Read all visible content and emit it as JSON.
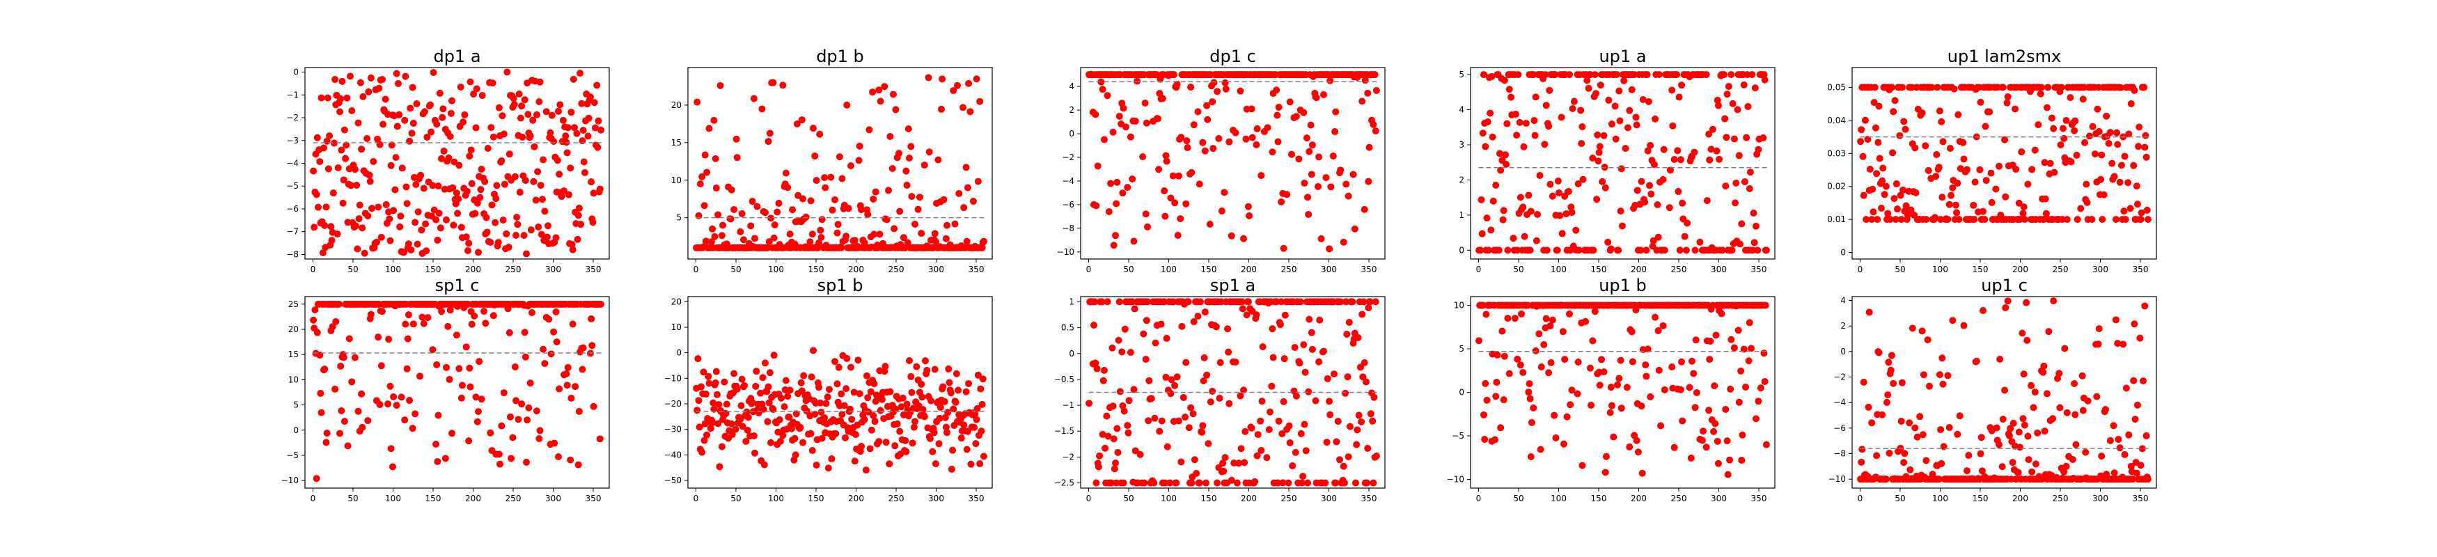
{
  "colors": {
    "marker": "#ff0000",
    "mean_line": "#808080",
    "axis": "#000000"
  },
  "chart_data": [
    {
      "type": "scatter",
      "title": "dp1 a",
      "xlim": [
        -10,
        370
      ],
      "ylim": [
        -8.2,
        0.2
      ],
      "xticks": [
        0,
        50,
        100,
        150,
        200,
        250,
        300,
        350
      ],
      "yticks": [
        -8,
        -7,
        -6,
        -5,
        -4,
        -3,
        -2,
        -1,
        0
      ],
      "mean": -3.1,
      "n": 360,
      "y_range": [
        -8,
        0
      ],
      "pattern": "uniform"
    },
    {
      "type": "scatter",
      "title": "dp1 b",
      "xlim": [
        -10,
        370
      ],
      "ylim": [
        -0.5,
        25
      ],
      "xticks": [
        0,
        50,
        100,
        150,
        200,
        250,
        300,
        350
      ],
      "yticks": [
        5,
        10,
        15,
        20
      ],
      "mean": 5.0,
      "n": 360,
      "y_range": [
        1,
        24
      ],
      "pattern": "floor-heavy"
    },
    {
      "type": "scatter",
      "title": "dp1 c",
      "xlim": [
        -10,
        370
      ],
      "ylim": [
        -10.6,
        5.6
      ],
      "xticks": [
        0,
        50,
        100,
        150,
        200,
        250,
        300,
        350
      ],
      "yticks": [
        -10,
        -8,
        -6,
        -4,
        -2,
        0,
        2,
        4
      ],
      "mean": 4.4,
      "n": 360,
      "y_range": [
        -10,
        5
      ],
      "pattern": "cap-heavy"
    },
    {
      "type": "scatter",
      "title": "up1 a",
      "xlim": [
        -10,
        370
      ],
      "ylim": [
        -0.25,
        5.2
      ],
      "xticks": [
        0,
        50,
        100,
        150,
        200,
        250,
        300,
        350
      ],
      "yticks": [
        0,
        1,
        2,
        3,
        4,
        5
      ],
      "mean": 2.35,
      "n": 360,
      "y_range": [
        0,
        5
      ],
      "pattern": "both-edges"
    },
    {
      "type": "scatter",
      "title": "up1 lam2smx",
      "xlim": [
        -10,
        370
      ],
      "ylim": [
        -0.002,
        0.056
      ],
      "xticks": [
        0,
        50,
        100,
        150,
        200,
        250,
        300,
        350
      ],
      "yticks": [
        0.0,
        0.01,
        0.02,
        0.03,
        0.04,
        0.05
      ],
      "mean": 0.035,
      "n": 360,
      "y_range": [
        0.01,
        0.05
      ],
      "pattern": "both-edges"
    },
    {
      "type": "scatter",
      "title": "sp1 c",
      "xlim": [
        -10,
        370
      ],
      "ylim": [
        -11.5,
        26.5
      ],
      "xticks": [
        0,
        50,
        100,
        150,
        200,
        250,
        300,
        350
      ],
      "yticks": [
        -10,
        -5,
        0,
        5,
        10,
        15,
        20,
        25
      ],
      "mean": 15.3,
      "n": 360,
      "y_range": [
        -10,
        25
      ],
      "pattern": "cap-heavy"
    },
    {
      "type": "scatter",
      "title": "sp1 b",
      "xlim": [
        -10,
        370
      ],
      "ylim": [
        -53,
        22
      ],
      "xticks": [
        0,
        50,
        100,
        150,
        200,
        250,
        300,
        350
      ],
      "yticks": [
        -50,
        -40,
        -30,
        -20,
        -10,
        0,
        10,
        20
      ],
      "mean": -23.0,
      "n": 360,
      "y_range": [
        -50,
        20
      ],
      "pattern": "normal"
    },
    {
      "type": "scatter",
      "title": "sp1 a",
      "xlim": [
        -10,
        370
      ],
      "ylim": [
        -2.6,
        1.1
      ],
      "xticks": [
        0,
        50,
        100,
        150,
        200,
        250,
        300,
        350
      ],
      "yticks": [
        -2.5,
        -2.0,
        -1.5,
        -1.0,
        -0.5,
        0.0,
        0.5,
        1.0
      ],
      "mean": -0.75,
      "n": 360,
      "y_range": [
        -2.5,
        1
      ],
      "pattern": "both-edges"
    },
    {
      "type": "scatter",
      "title": "up1 b",
      "xlim": [
        -10,
        370
      ],
      "ylim": [
        -11,
        11
      ],
      "xticks": [
        0,
        50,
        100,
        150,
        200,
        250,
        300,
        350
      ],
      "yticks": [
        -10,
        -5,
        0,
        5,
        10
      ],
      "mean": 4.7,
      "n": 360,
      "y_range": [
        -10,
        10
      ],
      "pattern": "cap-heavy"
    },
    {
      "type": "scatter",
      "title": "up1 c",
      "xlim": [
        -10,
        370
      ],
      "ylim": [
        -10.7,
        4.3
      ],
      "xticks": [
        0,
        50,
        100,
        150,
        200,
        250,
        300,
        350
      ],
      "yticks": [
        -10,
        -8,
        -6,
        -4,
        -2,
        0,
        2,
        4
      ],
      "mean": -7.6,
      "n": 360,
      "y_range": [
        -10,
        4
      ],
      "pattern": "floor-heavy"
    }
  ]
}
